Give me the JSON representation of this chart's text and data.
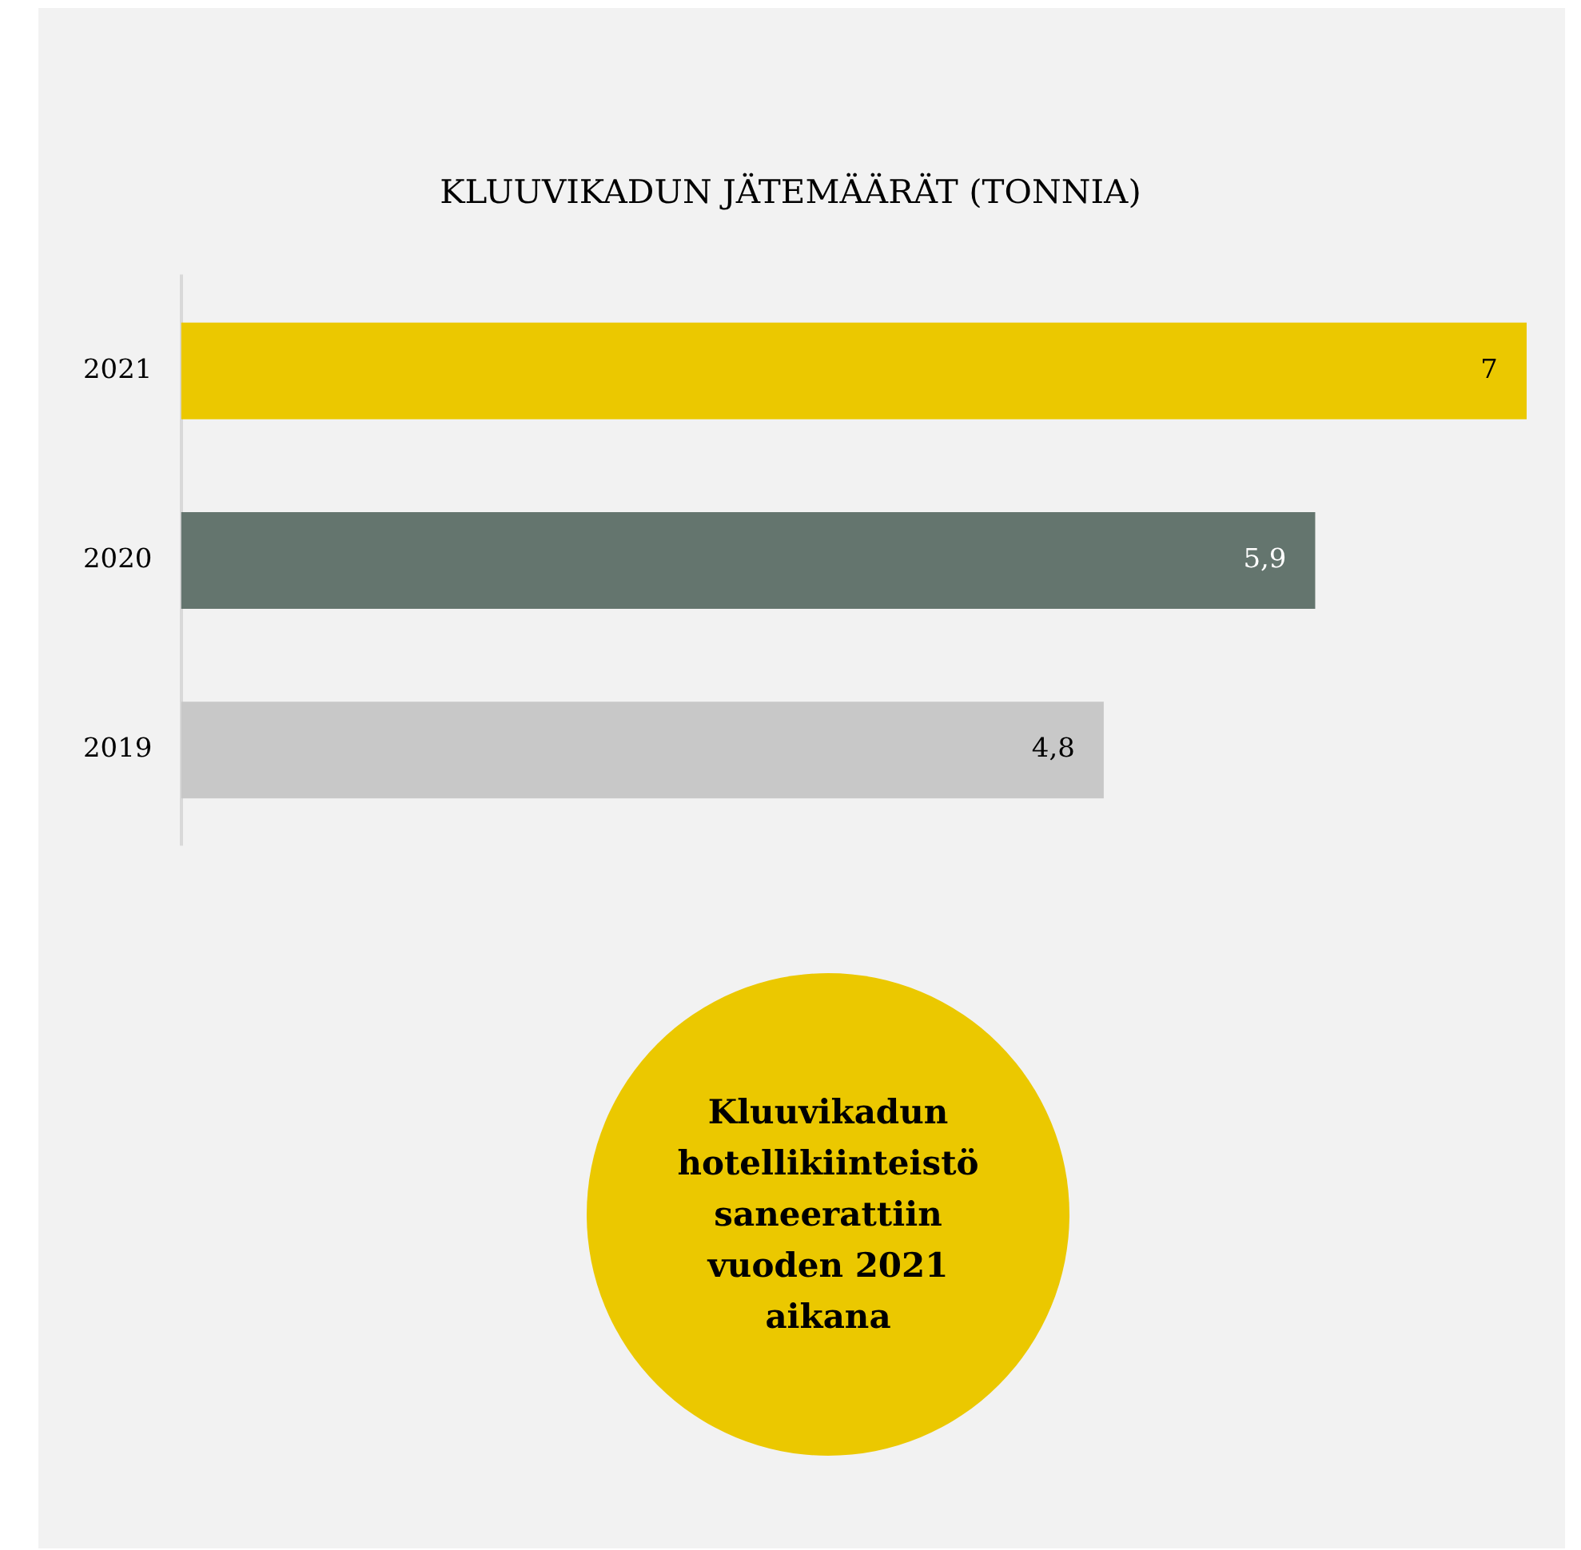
{
  "chart_data": {
    "type": "bar",
    "orientation": "horizontal",
    "title": "KLUUVIKADUN JÄTEMÄÄRÄT (TONNIA)",
    "categories": [
      "2021",
      "2020",
      "2019"
    ],
    "values": [
      7,
      5.9,
      4.8
    ],
    "colors": [
      "#ebc800",
      "#64756e",
      "#c8c8c8"
    ],
    "value_labels": [
      "7",
      "5,9",
      "4,8"
    ],
    "tick_labels": "y",
    "annotations": [
      "Kluuvikadun hotellikiinteistö saneerattiin vuoden 2021 aikana"
    ]
  }
}
